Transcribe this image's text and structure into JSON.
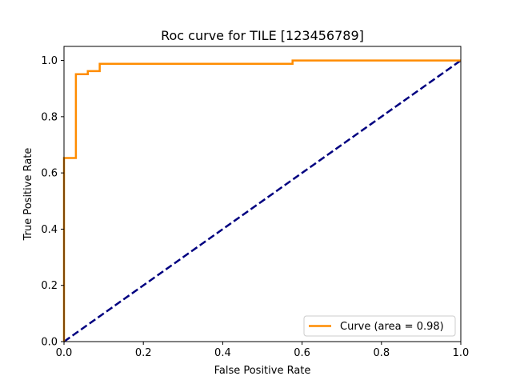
{
  "chart_data": {
    "type": "line",
    "title": "Roc curve for TILE [123456789]",
    "xlabel": "False Positive Rate",
    "ylabel": "True Positive Rate",
    "xlim": [
      0.0,
      1.0
    ],
    "ylim": [
      0.0,
      1.05
    ],
    "xticks": [
      "0.0",
      "0.2",
      "0.4",
      "0.6",
      "0.8",
      "1.0"
    ],
    "yticks": [
      "0.0",
      "0.2",
      "0.4",
      "0.6",
      "0.8",
      "1.0"
    ],
    "grid": false,
    "legend_position": "lower right",
    "series": [
      {
        "name": "Curve (area = 0.98)",
        "color": "#ff8c00",
        "style": "solid",
        "x": [
          0.0,
          0.0,
          0.03,
          0.03,
          0.06,
          0.06,
          0.09,
          0.09,
          0.576,
          0.576,
          1.0
        ],
        "y": [
          0.0,
          0.653,
          0.653,
          0.951,
          0.951,
          0.962,
          0.962,
          0.988,
          0.988,
          1.0,
          1.0
        ]
      },
      {
        "color": "#000080",
        "style": "dashed",
        "x": [
          0.0,
          1.0
        ],
        "y": [
          0.0,
          1.0
        ]
      }
    ]
  }
}
